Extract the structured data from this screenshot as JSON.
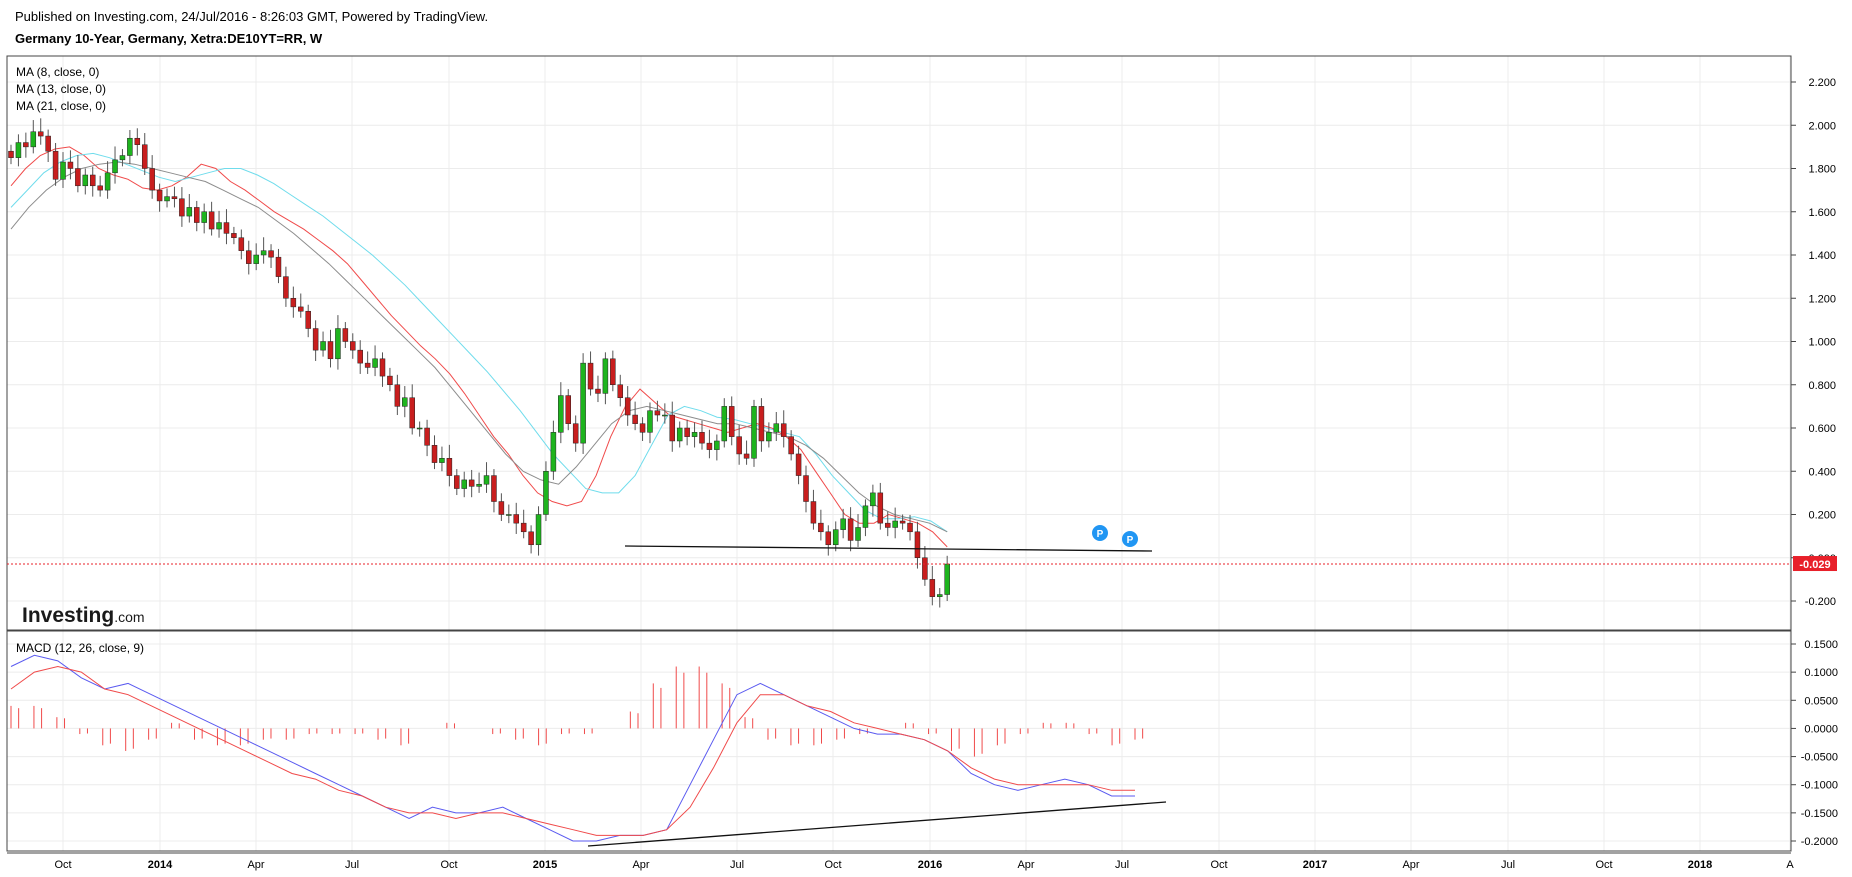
{
  "header": {
    "published": "Published on Investing.com, 24/Jul/2016 - 8:26:03 GMT, Powered by TradingView.",
    "symbol": "Germany 10-Year, Germany, Xetra:DE10YT=RR, W"
  },
  "legend": {
    "ma1": "MA (8, close, 0)",
    "ma2": "MA (13, close, 0)",
    "ma3": "MA (21, close, 0)",
    "macd": "MACD (12, 26, close, 9)"
  },
  "logo": {
    "word": "Investing",
    "suffix": ".com"
  },
  "markers": {
    "p1": "P",
    "p2": "P"
  },
  "colors": {
    "up": "#1eb41e",
    "down": "#c81e1e",
    "ma8": "#f04a4a",
    "ma13": "#6fdcec",
    "ma21": "#8c8c8c",
    "macd": "#5a5af0",
    "signal": "#f04a4a",
    "hist": "#f04a4a",
    "price": "#e8202a",
    "marker": "#2196f3"
  },
  "chart_data": {
    "type": "candlestick",
    "price_axis": {
      "ylim": [
        -0.3,
        2.28
      ],
      "ticks": [
        "2.200",
        "2.000",
        "1.800",
        "1.600",
        "1.400",
        "1.200",
        "1.000",
        "0.800",
        "0.600",
        "0.400",
        "0.200",
        "0.000",
        "-0.200"
      ]
    },
    "macd_axis": {
      "ylim": [
        -0.215,
        0.16
      ],
      "ticks": [
        "0.1500",
        "0.1000",
        "0.0500",
        "0.0000",
        "-0.0500",
        "-0.1000",
        "-0.1500",
        "-0.2000"
      ]
    },
    "last_price": "-0.029",
    "x_labels": [
      "Oct",
      "2014",
      "Apr",
      "Jul",
      "Oct",
      "2015",
      "Apr",
      "Jul",
      "Oct",
      "2016",
      "Apr",
      "Jul",
      "Oct",
      "2017",
      "Apr",
      "Jul",
      "Oct",
      "2018",
      "A"
    ],
    "weekly_closes": [
      1.85,
      1.92,
      1.9,
      1.97,
      1.95,
      1.88,
      1.75,
      1.83,
      1.8,
      1.72,
      1.77,
      1.72,
      1.7,
      1.78,
      1.84,
      1.86,
      1.94,
      1.91,
      1.8,
      1.7,
      1.65,
      1.67,
      1.66,
      1.58,
      1.62,
      1.55,
      1.6,
      1.52,
      1.55,
      1.5,
      1.48,
      1.42,
      1.36,
      1.4,
      1.42,
      1.39,
      1.3,
      1.2,
      1.16,
      1.14,
      1.06,
      0.96,
      1.0,
      0.92,
      1.06,
      1.0,
      0.96,
      0.9,
      0.88,
      0.92,
      0.84,
      0.8,
      0.7,
      0.74,
      0.6,
      0.6,
      0.52,
      0.44,
      0.46,
      0.38,
      0.32,
      0.36,
      0.33,
      0.34,
      0.38,
      0.26,
      0.2,
      0.2,
      0.16,
      0.12,
      0.06,
      0.2,
      0.4,
      0.58,
      0.75,
      0.62,
      0.53,
      0.9,
      0.78,
      0.76,
      0.92,
      0.8,
      0.74,
      0.66,
      0.62,
      0.58,
      0.68,
      0.66,
      0.66,
      0.54,
      0.6,
      0.56,
      0.58,
      0.53,
      0.5,
      0.54,
      0.7,
      0.56,
      0.48,
      0.46,
      0.7,
      0.54,
      0.58,
      0.62,
      0.56,
      0.48,
      0.38,
      0.26,
      0.16,
      0.12,
      0.06,
      0.13,
      0.18,
      0.08,
      0.14,
      0.24,
      0.3,
      0.16,
      0.14,
      0.17,
      0.16,
      0.12,
      0.0,
      -0.1,
      -0.18,
      -0.17,
      -0.029
    ],
    "ma_series": [
      {
        "name": "MA (8, close, 0)",
        "values": [
          1.72,
          1.8,
          1.86,
          1.89,
          1.9,
          1.86,
          1.8,
          1.77,
          1.75,
          1.71,
          1.7,
          1.72,
          1.76,
          1.82,
          1.8,
          1.74,
          1.7,
          1.65,
          1.6,
          1.56,
          1.52,
          1.47,
          1.42,
          1.36,
          1.28,
          1.2,
          1.12,
          1.05,
          0.98,
          0.92,
          0.85,
          0.76,
          0.66,
          0.56,
          0.48,
          0.38,
          0.3,
          0.26,
          0.24,
          0.26,
          0.38,
          0.56,
          0.7,
          0.78,
          0.72,
          0.66,
          0.64,
          0.62,
          0.6,
          0.58,
          0.6,
          0.62,
          0.6,
          0.56,
          0.5,
          0.4,
          0.3,
          0.2,
          0.16,
          0.16,
          0.2,
          0.18,
          0.16,
          0.12,
          0.05
        ]
      },
      {
        "name": "MA (13, close, 0)",
        "values": [
          1.62,
          1.7,
          1.78,
          1.83,
          1.86,
          1.87,
          1.85,
          1.82,
          1.79,
          1.76,
          1.74,
          1.76,
          1.78,
          1.8,
          1.8,
          1.77,
          1.73,
          1.68,
          1.63,
          1.58,
          1.52,
          1.46,
          1.4,
          1.33,
          1.26,
          1.18,
          1.1,
          1.02,
          0.94,
          0.86,
          0.77,
          0.68,
          0.58,
          0.48,
          0.4,
          0.32,
          0.3,
          0.3,
          0.38,
          0.52,
          0.66,
          0.7,
          0.68,
          0.65,
          0.64,
          0.62,
          0.6,
          0.58,
          0.56,
          0.48,
          0.38,
          0.3,
          0.22,
          0.18,
          0.18,
          0.19,
          0.17,
          0.12
        ]
      },
      {
        "name": "MA (21, close, 0)",
        "values": [
          1.52,
          1.62,
          1.7,
          1.76,
          1.8,
          1.82,
          1.83,
          1.82,
          1.8,
          1.78,
          1.76,
          1.74,
          1.7,
          1.66,
          1.62,
          1.56,
          1.5,
          1.43,
          1.36,
          1.28,
          1.2,
          1.12,
          1.04,
          0.96,
          0.88,
          0.78,
          0.68,
          0.58,
          0.48,
          0.4,
          0.36,
          0.34,
          0.42,
          0.52,
          0.62,
          0.68,
          0.7,
          0.68,
          0.66,
          0.64,
          0.62,
          0.62,
          0.6,
          0.58,
          0.56,
          0.52,
          0.46,
          0.38,
          0.3,
          0.24,
          0.2,
          0.18,
          0.16,
          0.12
        ]
      }
    ],
    "macd_series": [
      {
        "name": "MACD",
        "values": [
          0.11,
          0.13,
          0.12,
          0.09,
          0.07,
          0.08,
          0.06,
          0.04,
          0.02,
          0.0,
          -0.02,
          -0.04,
          -0.06,
          -0.08,
          -0.1,
          -0.12,
          -0.14,
          -0.16,
          -0.14,
          -0.15,
          -0.15,
          -0.14,
          -0.16,
          -0.18,
          -0.2,
          -0.2,
          -0.19,
          -0.19,
          -0.18,
          -0.1,
          -0.02,
          0.06,
          0.08,
          0.06,
          0.04,
          0.02,
          0.0,
          -0.01,
          -0.01,
          -0.02,
          -0.04,
          -0.08,
          -0.1,
          -0.11,
          -0.1,
          -0.09,
          -0.1,
          -0.12,
          -0.12
        ]
      },
      {
        "name": "Signal",
        "values": [
          0.07,
          0.1,
          0.11,
          0.1,
          0.07,
          0.06,
          0.04,
          0.02,
          0.0,
          -0.02,
          -0.04,
          -0.06,
          -0.08,
          -0.09,
          -0.11,
          -0.12,
          -0.14,
          -0.15,
          -0.15,
          -0.16,
          -0.15,
          -0.15,
          -0.16,
          -0.17,
          -0.18,
          -0.19,
          -0.19,
          -0.19,
          -0.18,
          -0.14,
          -0.07,
          0.01,
          0.06,
          0.06,
          0.04,
          0.03,
          0.01,
          0.0,
          -0.01,
          -0.02,
          -0.04,
          -0.07,
          -0.09,
          -0.1,
          -0.1,
          -0.1,
          -0.1,
          -0.11,
          -0.11
        ]
      }
    ],
    "macd_histogram": [
      0.04,
      0.04,
      0.02,
      -0.01,
      -0.03,
      -0.04,
      -0.02,
      0.01,
      -0.02,
      -0.03,
      -0.03,
      -0.02,
      -0.02,
      -0.01,
      -0.01,
      -0.01,
      -0.02,
      -0.03,
      0.0,
      0.01,
      0.0,
      -0.01,
      -0.02,
      -0.03,
      -0.01,
      -0.01,
      0.0,
      0.03,
      0.08,
      0.11,
      0.11,
      0.08,
      0.02,
      -0.02,
      -0.03,
      -0.03,
      -0.02,
      -0.01,
      0.0,
      0.01,
      -0.01,
      -0.04,
      -0.05,
      -0.03,
      -0.01,
      0.01,
      0.01,
      -0.01,
      -0.03,
      -0.02
    ]
  }
}
